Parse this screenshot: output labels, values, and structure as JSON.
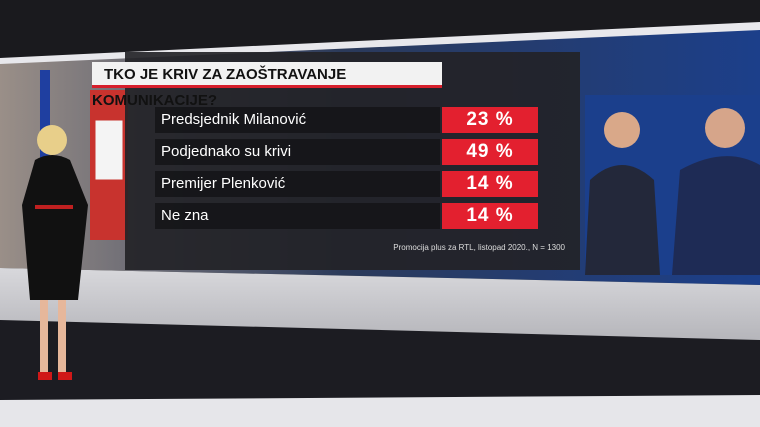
{
  "title": "TKO JE KRIV ZA ZAOŠTRAVANJE KOMUNIKACIJE?",
  "rows": [
    {
      "label": "Predsjednik Milanović",
      "value": "23 %"
    },
    {
      "label": "Podjednako su krivi",
      "value": "49 %"
    },
    {
      "label": "Premijer Plenković",
      "value": "14 %"
    },
    {
      "label": "Ne zna",
      "value": "14 %"
    }
  ],
  "source": "Promocija plus za RTL, listopad 2020., N = 1300"
}
